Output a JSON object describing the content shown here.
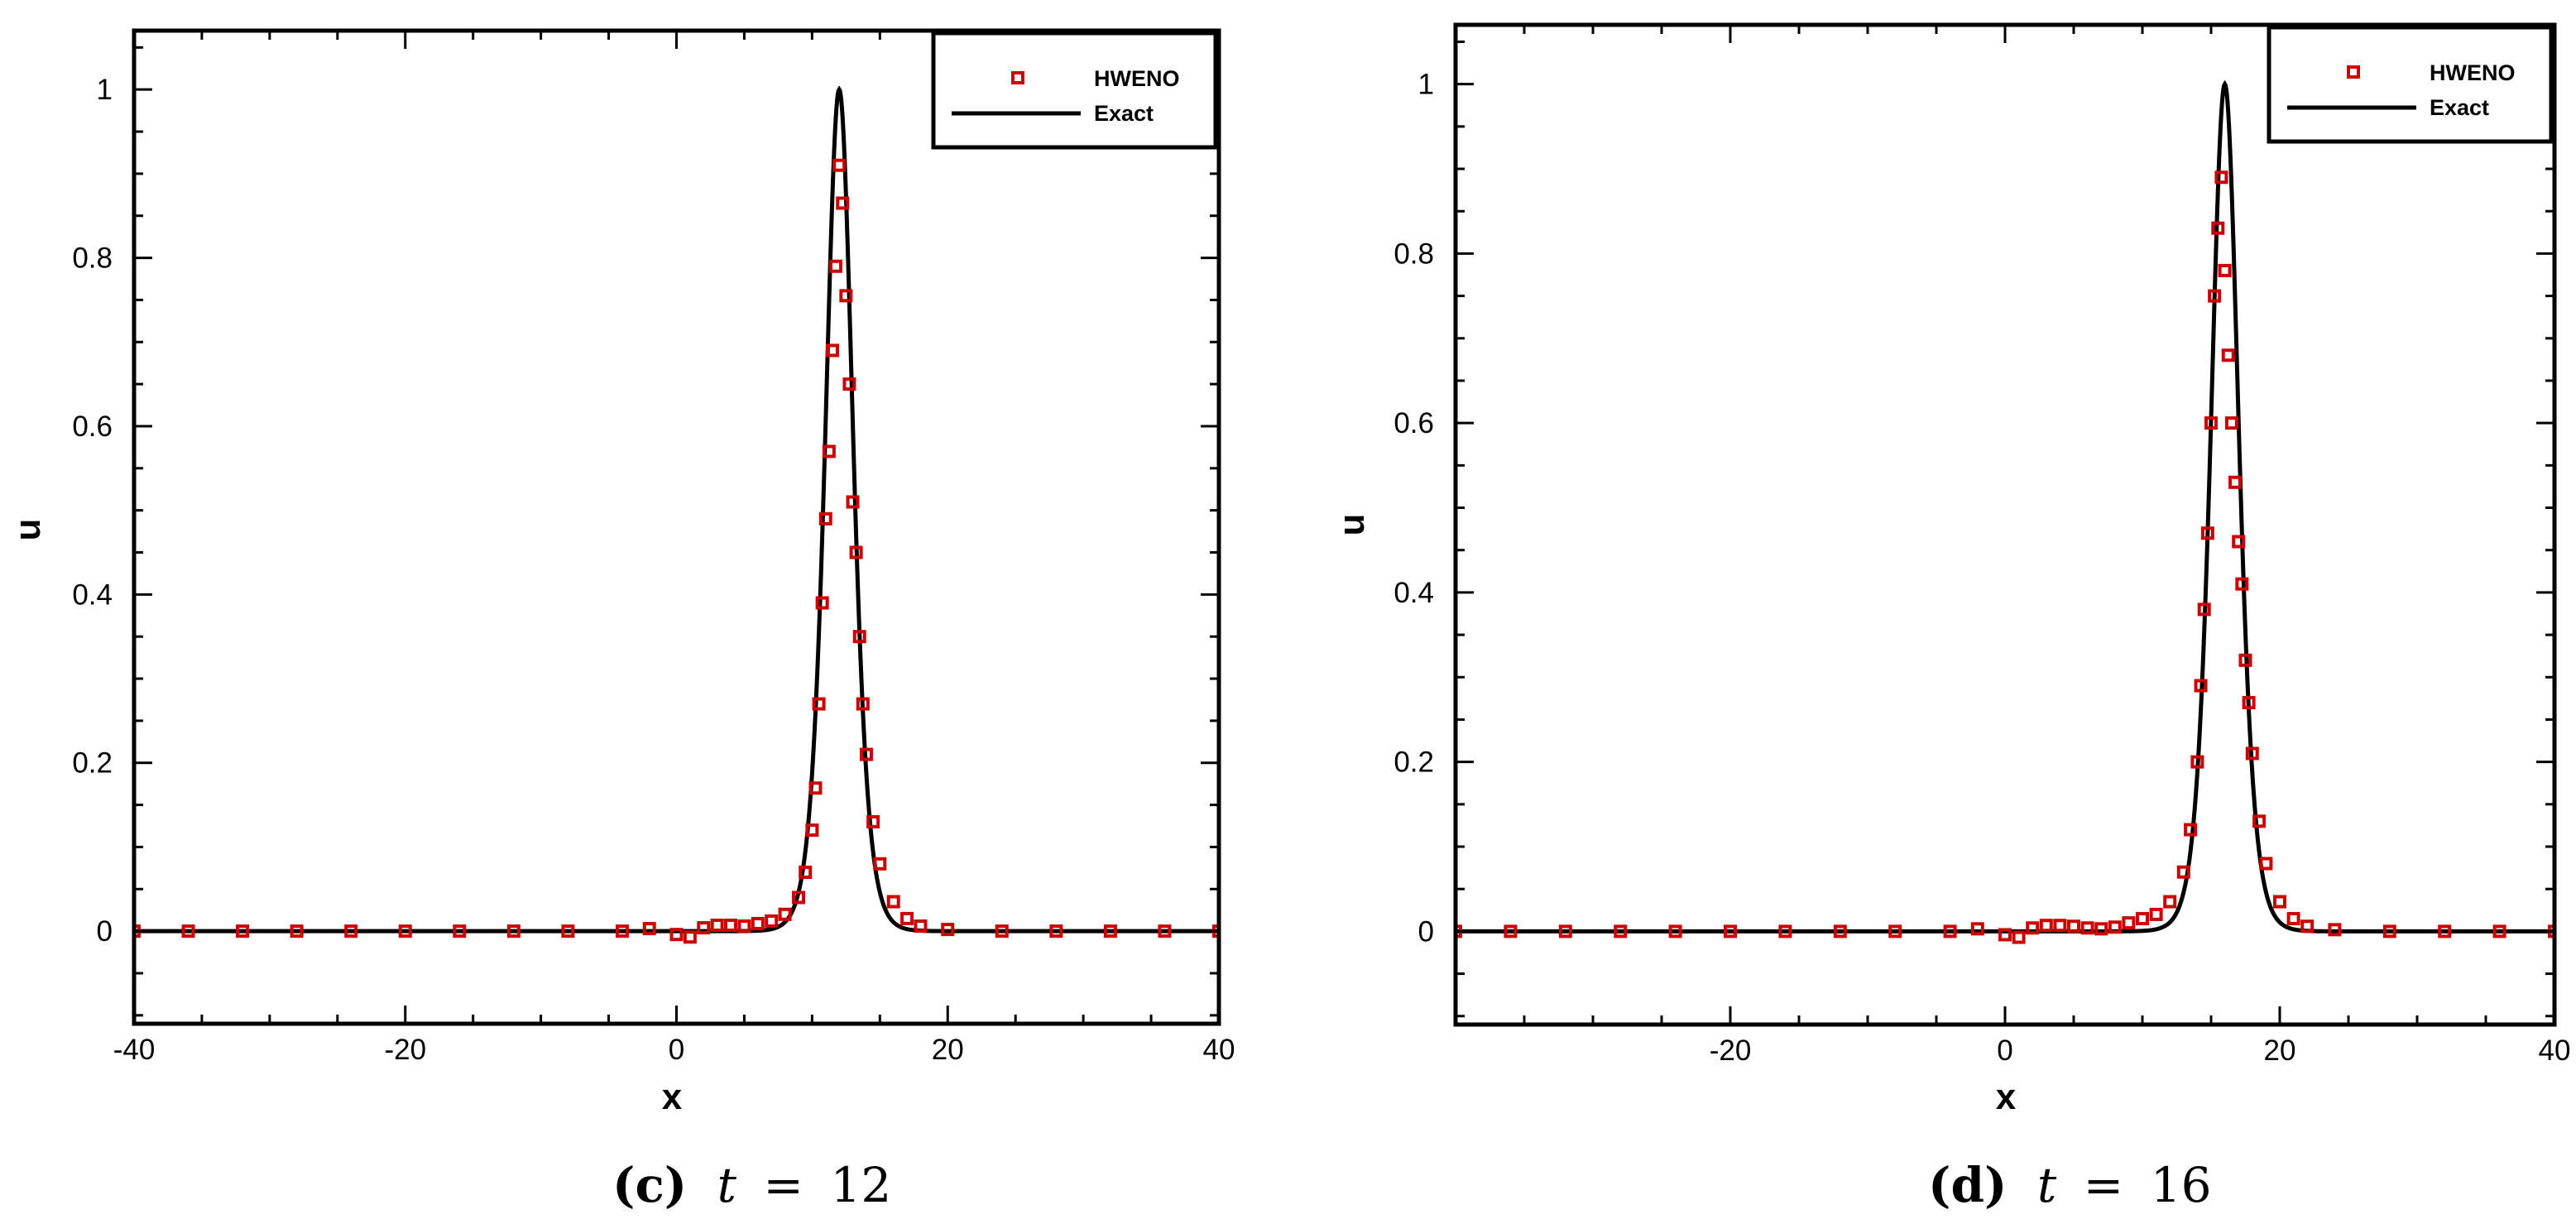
{
  "colors": {
    "numeric": "#cc0000",
    "exact": "#000000",
    "frame": "#000000"
  },
  "chart_data": [
    {
      "type": "line",
      "caption": {
        "label": "c",
        "var": "t",
        "eq": "=",
        "value": "12"
      },
      "xlabel": "x",
      "ylabel": "u",
      "xlim": [
        -40,
        40
      ],
      "ylim": [
        -0.11,
        1.07
      ],
      "xticks": [
        -40,
        -20,
        0,
        20,
        40
      ],
      "xtick_labels": [
        "-40",
        "-20",
        "0",
        "20",
        "40"
      ],
      "yticks": [
        0,
        0.2,
        0.4,
        0.6,
        0.8,
        1
      ],
      "ytick_labels": [
        "0",
        "0.2",
        "0.4",
        "0.6",
        "0.8",
        "1"
      ],
      "legend": {
        "position": "top-right",
        "entries": [
          "HWENO",
          "Exact"
        ]
      },
      "peak_center": 12,
      "peak_height": 1,
      "series": [
        {
          "name": "HWENO",
          "style": "markers",
          "x": [
            -40,
            -36,
            -32,
            -28,
            -24,
            -20,
            -16,
            -12,
            -8,
            -4,
            -2,
            0,
            1,
            2,
            3,
            4,
            5,
            6,
            7,
            8,
            9,
            9.5,
            10,
            10.25,
            10.5,
            10.75,
            11,
            11.25,
            11.5,
            11.75,
            12,
            12.25,
            12.5,
            12.75,
            13,
            13.25,
            13.5,
            13.75,
            14,
            14.5,
            15,
            16,
            17,
            18,
            20,
            24,
            28,
            32,
            36,
            40
          ],
          "y": [
            0,
            0,
            0,
            0,
            0,
            0,
            0,
            0,
            0,
            0,
            0.003,
            -0.004,
            -0.007,
            0.004,
            0.007,
            0.007,
            0.006,
            0.009,
            0.012,
            0.02,
            0.04,
            0.07,
            0.12,
            0.17,
            0.27,
            0.39,
            0.49,
            0.57,
            0.69,
            0.79,
            0.91,
            0.865,
            0.755,
            0.65,
            0.51,
            0.45,
            0.35,
            0.27,
            0.21,
            0.13,
            0.08,
            0.035,
            0.015,
            0.006,
            0.002,
            0,
            0,
            0,
            0,
            0
          ]
        },
        {
          "name": "Exact",
          "style": "line",
          "x": [],
          "y": []
        }
      ]
    },
    {
      "type": "line",
      "caption": {
        "label": "d",
        "var": "t",
        "eq": "=",
        "value": "16"
      },
      "xlabel": "x",
      "ylabel": "u",
      "xlim": [
        -40,
        40
      ],
      "ylim": [
        -0.11,
        1.07
      ],
      "xticks": [
        -20,
        0,
        20,
        40
      ],
      "xtick_labels": [
        "-20",
        "0",
        "20",
        "40"
      ],
      "yticks": [
        0,
        0.2,
        0.4,
        0.6,
        0.8,
        1
      ],
      "ytick_labels": [
        "0",
        "0.2",
        "0.4",
        "0.6",
        "0.8",
        "1"
      ],
      "legend": {
        "position": "top-right",
        "entries": [
          "HWENO",
          "Exact"
        ]
      },
      "peak_center": 16,
      "peak_height": 1,
      "series": [
        {
          "name": "HWENO",
          "style": "markers",
          "x": [
            -40,
            -36,
            -32,
            -28,
            -24,
            -20,
            -16,
            -12,
            -8,
            -4,
            -2,
            0,
            1,
            2,
            3,
            4,
            5,
            6,
            7,
            8,
            9,
            10,
            11,
            12,
            13,
            13.5,
            14,
            14.25,
            14.5,
            14.75,
            15,
            15.25,
            15.5,
            15.75,
            16,
            16.25,
            16.5,
            16.75,
            17,
            17.25,
            17.5,
            17.75,
            18,
            18.5,
            19,
            20,
            21,
            22,
            24,
            28,
            32,
            36,
            40
          ],
          "y": [
            0,
            0,
            0,
            0,
            0,
            0,
            0,
            0,
            0,
            0,
            0.003,
            -0.004,
            -0.007,
            0.004,
            0.007,
            0.007,
            0.006,
            0.004,
            0.003,
            0.005,
            0.01,
            0.015,
            0.02,
            0.035,
            0.07,
            0.12,
            0.2,
            0.29,
            0.38,
            0.47,
            0.6,
            0.75,
            0.83,
            0.89,
            0.78,
            0.68,
            0.6,
            0.53,
            0.46,
            0.41,
            0.32,
            0.27,
            0.21,
            0.13,
            0.08,
            0.035,
            0.015,
            0.006,
            0.002,
            0,
            0,
            0,
            0
          ]
        },
        {
          "name": "Exact",
          "style": "line",
          "x": [],
          "y": []
        }
      ]
    }
  ]
}
